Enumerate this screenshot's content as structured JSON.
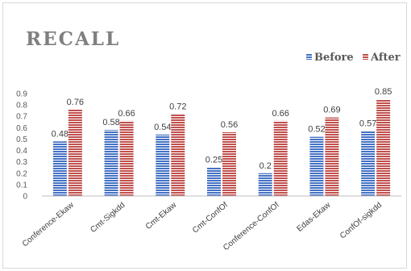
{
  "chart_data": {
    "type": "bar",
    "title": "RECALL",
    "categories": [
      "Conference-Ekaw",
      "Cmt-Sigkdd",
      "Cmt-Ekaw",
      "Cmt-ConfOf",
      "Conference-ConfOf",
      "Edas-Ekaw",
      "ConfOf-sigkdd"
    ],
    "series": [
      {
        "name": "Before",
        "values": [
          0.48,
          0.58,
          0.54,
          0.25,
          0.2,
          0.52,
          0.57
        ],
        "color": "#4472c4"
      },
      {
        "name": "After",
        "values": [
          0.76,
          0.66,
          0.72,
          0.56,
          0.66,
          0.69,
          0.85
        ],
        "color": "#c0504d"
      }
    ],
    "data_labels": {
      "Before": [
        "0.48",
        "0.58",
        "0.54",
        "0.25",
        "0.2",
        "0.52",
        "0.57"
      ],
      "After": [
        "0.76",
        "0.66",
        "0.72",
        "0.56",
        "0.66",
        "0.69",
        "0.85"
      ]
    },
    "y_ticks": [
      "0",
      "0.1",
      "0.2",
      "0.3",
      "0.4",
      "0.5",
      "0.6",
      "0.7",
      "0.8",
      "0.9"
    ],
    "ylim": [
      0,
      0.9
    ],
    "xlabel": "",
    "ylabel": "",
    "legend_position": "top-right",
    "grid": false
  }
}
